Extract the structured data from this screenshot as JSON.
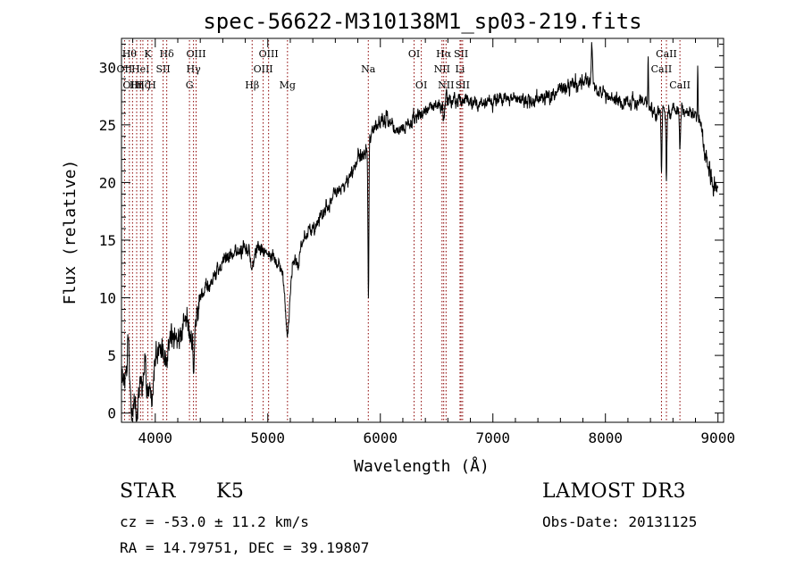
{
  "chart_data": {
    "type": "line",
    "title": "spec-56622-M310138M1_sp03-219.fits",
    "xlabel": "Wavelength (Å)",
    "ylabel": "Flux (relative)",
    "xlim": [
      3700,
      9050
    ],
    "ylim": [
      -0.8,
      32.5
    ],
    "x_ticks": [
      4000,
      5000,
      6000,
      7000,
      8000,
      9000
    ],
    "y_ticks": [
      0,
      5,
      10,
      15,
      20,
      25,
      30
    ],
    "grid": false,
    "series": [
      {
        "name": "spectrum",
        "anchors": [
          [
            3700,
            2.5
          ],
          [
            3760,
            4.0
          ],
          [
            3800,
            2.0
          ],
          [
            3840,
            1.5
          ],
          [
            3880,
            3.5
          ],
          [
            3930,
            4.5
          ],
          [
            3970,
            3.0
          ],
          [
            4000,
            4.5
          ],
          [
            4050,
            5.5
          ],
          [
            4100,
            6.0
          ],
          [
            4150,
            6.5
          ],
          [
            4200,
            7.0
          ],
          [
            4250,
            7.5
          ],
          [
            4300,
            8.5
          ],
          [
            4340,
            6.5
          ],
          [
            4400,
            10.0
          ],
          [
            4500,
            11.5
          ],
          [
            4600,
            13.0
          ],
          [
            4700,
            14.0
          ],
          [
            4800,
            14.3
          ],
          [
            4860,
            14.0
          ],
          [
            4920,
            14.4
          ],
          [
            5000,
            14.0
          ],
          [
            5100,
            13.0
          ],
          [
            5170,
            11.0
          ],
          [
            5230,
            13.0
          ],
          [
            5300,
            15.0
          ],
          [
            5400,
            16.0
          ],
          [
            5500,
            17.5
          ],
          [
            5600,
            19.0
          ],
          [
            5700,
            20.0
          ],
          [
            5800,
            22.0
          ],
          [
            5890,
            23.0
          ],
          [
            5960,
            25.0
          ],
          [
            6050,
            25.5
          ],
          [
            6150,
            24.5
          ],
          [
            6250,
            25.0
          ],
          [
            6350,
            25.8
          ],
          [
            6450,
            26.5
          ],
          [
            6560,
            27.0
          ],
          [
            6650,
            27.2
          ],
          [
            6750,
            27.0
          ],
          [
            6850,
            26.8
          ],
          [
            6950,
            26.8
          ],
          [
            7050,
            27.2
          ],
          [
            7150,
            27.5
          ],
          [
            7300,
            27.0
          ],
          [
            7450,
            27.3
          ],
          [
            7600,
            28.0
          ],
          [
            7750,
            28.5
          ],
          [
            7850,
            28.6
          ],
          [
            7950,
            28.0
          ],
          [
            8050,
            27.5
          ],
          [
            8150,
            27.0
          ],
          [
            8250,
            27.0
          ],
          [
            8350,
            27.2
          ],
          [
            8450,
            26.0
          ],
          [
            8550,
            26.0
          ],
          [
            8650,
            26.5
          ],
          [
            8750,
            26.0
          ],
          [
            8850,
            25.0
          ],
          [
            8900,
            22.0
          ],
          [
            8950,
            20.0
          ],
          [
            9000,
            19.5
          ]
        ],
        "dips": [
          [
            3795,
            2.5,
            10
          ],
          [
            3835,
            2.5,
            10
          ],
          [
            3890,
            2.0,
            10
          ],
          [
            3934,
            3.0,
            10
          ],
          [
            3969,
            2.5,
            10
          ],
          [
            4102,
            2.0,
            12
          ],
          [
            4227,
            1.2,
            10
          ],
          [
            4304,
            1.5,
            10
          ],
          [
            4341,
            2.0,
            12
          ],
          [
            4861,
            1.5,
            12
          ],
          [
            5167,
            2.5,
            15
          ],
          [
            5183,
            2.5,
            15
          ],
          [
            5270,
            1.5,
            12
          ],
          [
            5894,
            13.0,
            4
          ],
          [
            6563,
            2.0,
            6
          ],
          [
            8498,
            5.0,
            4
          ],
          [
            8542,
            5.5,
            4
          ],
          [
            8662,
            4.0,
            5
          ],
          [
            8380,
            -4.0,
            3
          ],
          [
            8820,
            -5.0,
            3
          ]
        ],
        "peaks": [
          [
            7880,
            3.0,
            6
          ],
          [
            3900,
            1.5,
            8
          ],
          [
            3760,
            3.0,
            6
          ]
        ],
        "noise_amplitude": 0.85,
        "step": 2
      }
    ],
    "line_markers": [
      {
        "wavelength": 3727,
        "label": "OII",
        "row": 1
      },
      {
        "wavelength": 3770,
        "label": "Hθ",
        "row": 0
      },
      {
        "wavelength": 3798,
        "label": "OIII",
        "row": 2
      },
      {
        "wavelength": 3835,
        "label": "Hη",
        "row": 2
      },
      {
        "wavelength": 3869,
        "label": "HeI",
        "row": 1
      },
      {
        "wavelength": 3890,
        "label": "Hζ",
        "row": 2
      },
      {
        "wavelength": 3934,
        "label": "K",
        "row": 0
      },
      {
        "wavelength": 3970,
        "label": "H",
        "row": 2
      },
      {
        "wavelength": 4070,
        "label": "SII",
        "row": 1
      },
      {
        "wavelength": 4102,
        "label": "Hδ",
        "row": 0
      },
      {
        "wavelength": 4304,
        "label": "G",
        "row": 2
      },
      {
        "wavelength": 4340,
        "label": "Hγ",
        "row": 1
      },
      {
        "wavelength": 4363,
        "label": "OIII",
        "row": 0
      },
      {
        "wavelength": 4861,
        "label": "Hβ",
        "row": 2
      },
      {
        "wavelength": 4959,
        "label": "OIII",
        "row": 1
      },
      {
        "wavelength": 5007,
        "label": "OIII",
        "row": 0
      },
      {
        "wavelength": 5175,
        "label": "Mg",
        "row": 2
      },
      {
        "wavelength": 5893,
        "label": "Na",
        "row": 1
      },
      {
        "wavelength": 6300,
        "label": "OI",
        "row": 0
      },
      {
        "wavelength": 6364,
        "label": "OI",
        "row": 2
      },
      {
        "wavelength": 6548,
        "label": "NII",
        "row": 1
      },
      {
        "wavelength": 6563,
        "label": "Hα",
        "row": 0
      },
      {
        "wavelength": 6584,
        "label": "NII",
        "row": 2
      },
      {
        "wavelength": 6708,
        "label": "Li",
        "row": 1
      },
      {
        "wavelength": 6717,
        "label": "SII",
        "row": 0
      },
      {
        "wavelength": 6731,
        "label": "SII",
        "row": 2
      },
      {
        "wavelength": 8498,
        "label": "CaII",
        "row": 1
      },
      {
        "wavelength": 8542,
        "label": "CaII",
        "row": 0
      },
      {
        "wavelength": 8662,
        "label": "CaII",
        "row": 2
      }
    ],
    "colors": {
      "line": "#000000",
      "marker": "#8b0000",
      "axis": "#000000"
    }
  },
  "footer": {
    "object_class": "STAR",
    "subclass": "K5",
    "survey": "LAMOST DR3",
    "cz": "cz = -53.0 ± 11.2 km/s",
    "obs_date": "Obs-Date: 20131125",
    "coords": "RA =  14.79751, DEC =  39.19807"
  }
}
